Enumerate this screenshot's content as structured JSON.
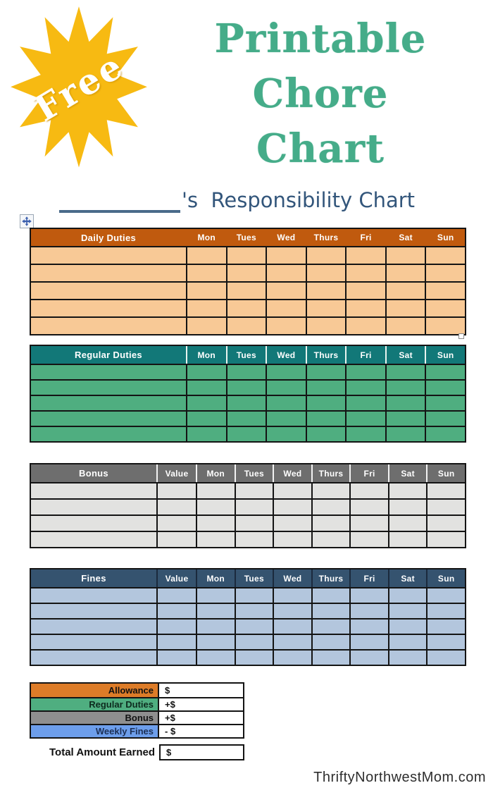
{
  "page": {
    "badge": "Free",
    "title_lines": [
      "Printable",
      "Chore",
      "Chart"
    ],
    "subtitle_suffix": "'s  Responsibility Chart",
    "watermark": "ThriftyNorthwestMom.com"
  },
  "days": [
    "Mon",
    "Tues",
    "Wed",
    "Thurs",
    "Fri",
    "Sat",
    "Sun"
  ],
  "tables": {
    "daily": {
      "title": "Daily Duties",
      "rows": 5,
      "header_bg": "#C05A0E",
      "cell_bg": "#F8C996",
      "header_sep": "transparent"
    },
    "regular": {
      "title": "Regular Duties",
      "rows": 5,
      "header_bg": "#127878",
      "cell_bg": "#4FAE80",
      "header_sep": "#e8f4ef"
    },
    "bonus": {
      "title": "Bonus",
      "value_header": "Value",
      "rows": 4,
      "header_bg": "#6E6E6E",
      "cell_bg": "#E2E2E0",
      "header_sep": "#f2f2f2"
    },
    "fines": {
      "title": "Fines",
      "value_header": "Value",
      "rows": 5,
      "header_bg": "#35536F",
      "cell_bg": "#B3C6DD",
      "header_sep": "#1b2a3d"
    }
  },
  "summary": {
    "rows": [
      {
        "label": "Allowance",
        "value": "$",
        "bg": "#DD7C28",
        "fg": "#111111"
      },
      {
        "label": "Regular Duties",
        "value": "+$",
        "bg": "#4FAE80",
        "fg": "#0d2b1e"
      },
      {
        "label": "Bonus",
        "value": "+$",
        "bg": "#8F8F8F",
        "fg": "#111111"
      },
      {
        "label": "Weekly Fines",
        "value": "- $",
        "bg": "#6D9EEB",
        "fg": "#1c2f55"
      }
    ],
    "total": {
      "label": "Total Amount Earned",
      "value": "$"
    }
  },
  "colors": {
    "star_yellow": "#F7BA12",
    "title_green": "#45AC89",
    "heading_blue": "#33567B",
    "underline": "#4A6B8A",
    "table_border": "#141414"
  }
}
